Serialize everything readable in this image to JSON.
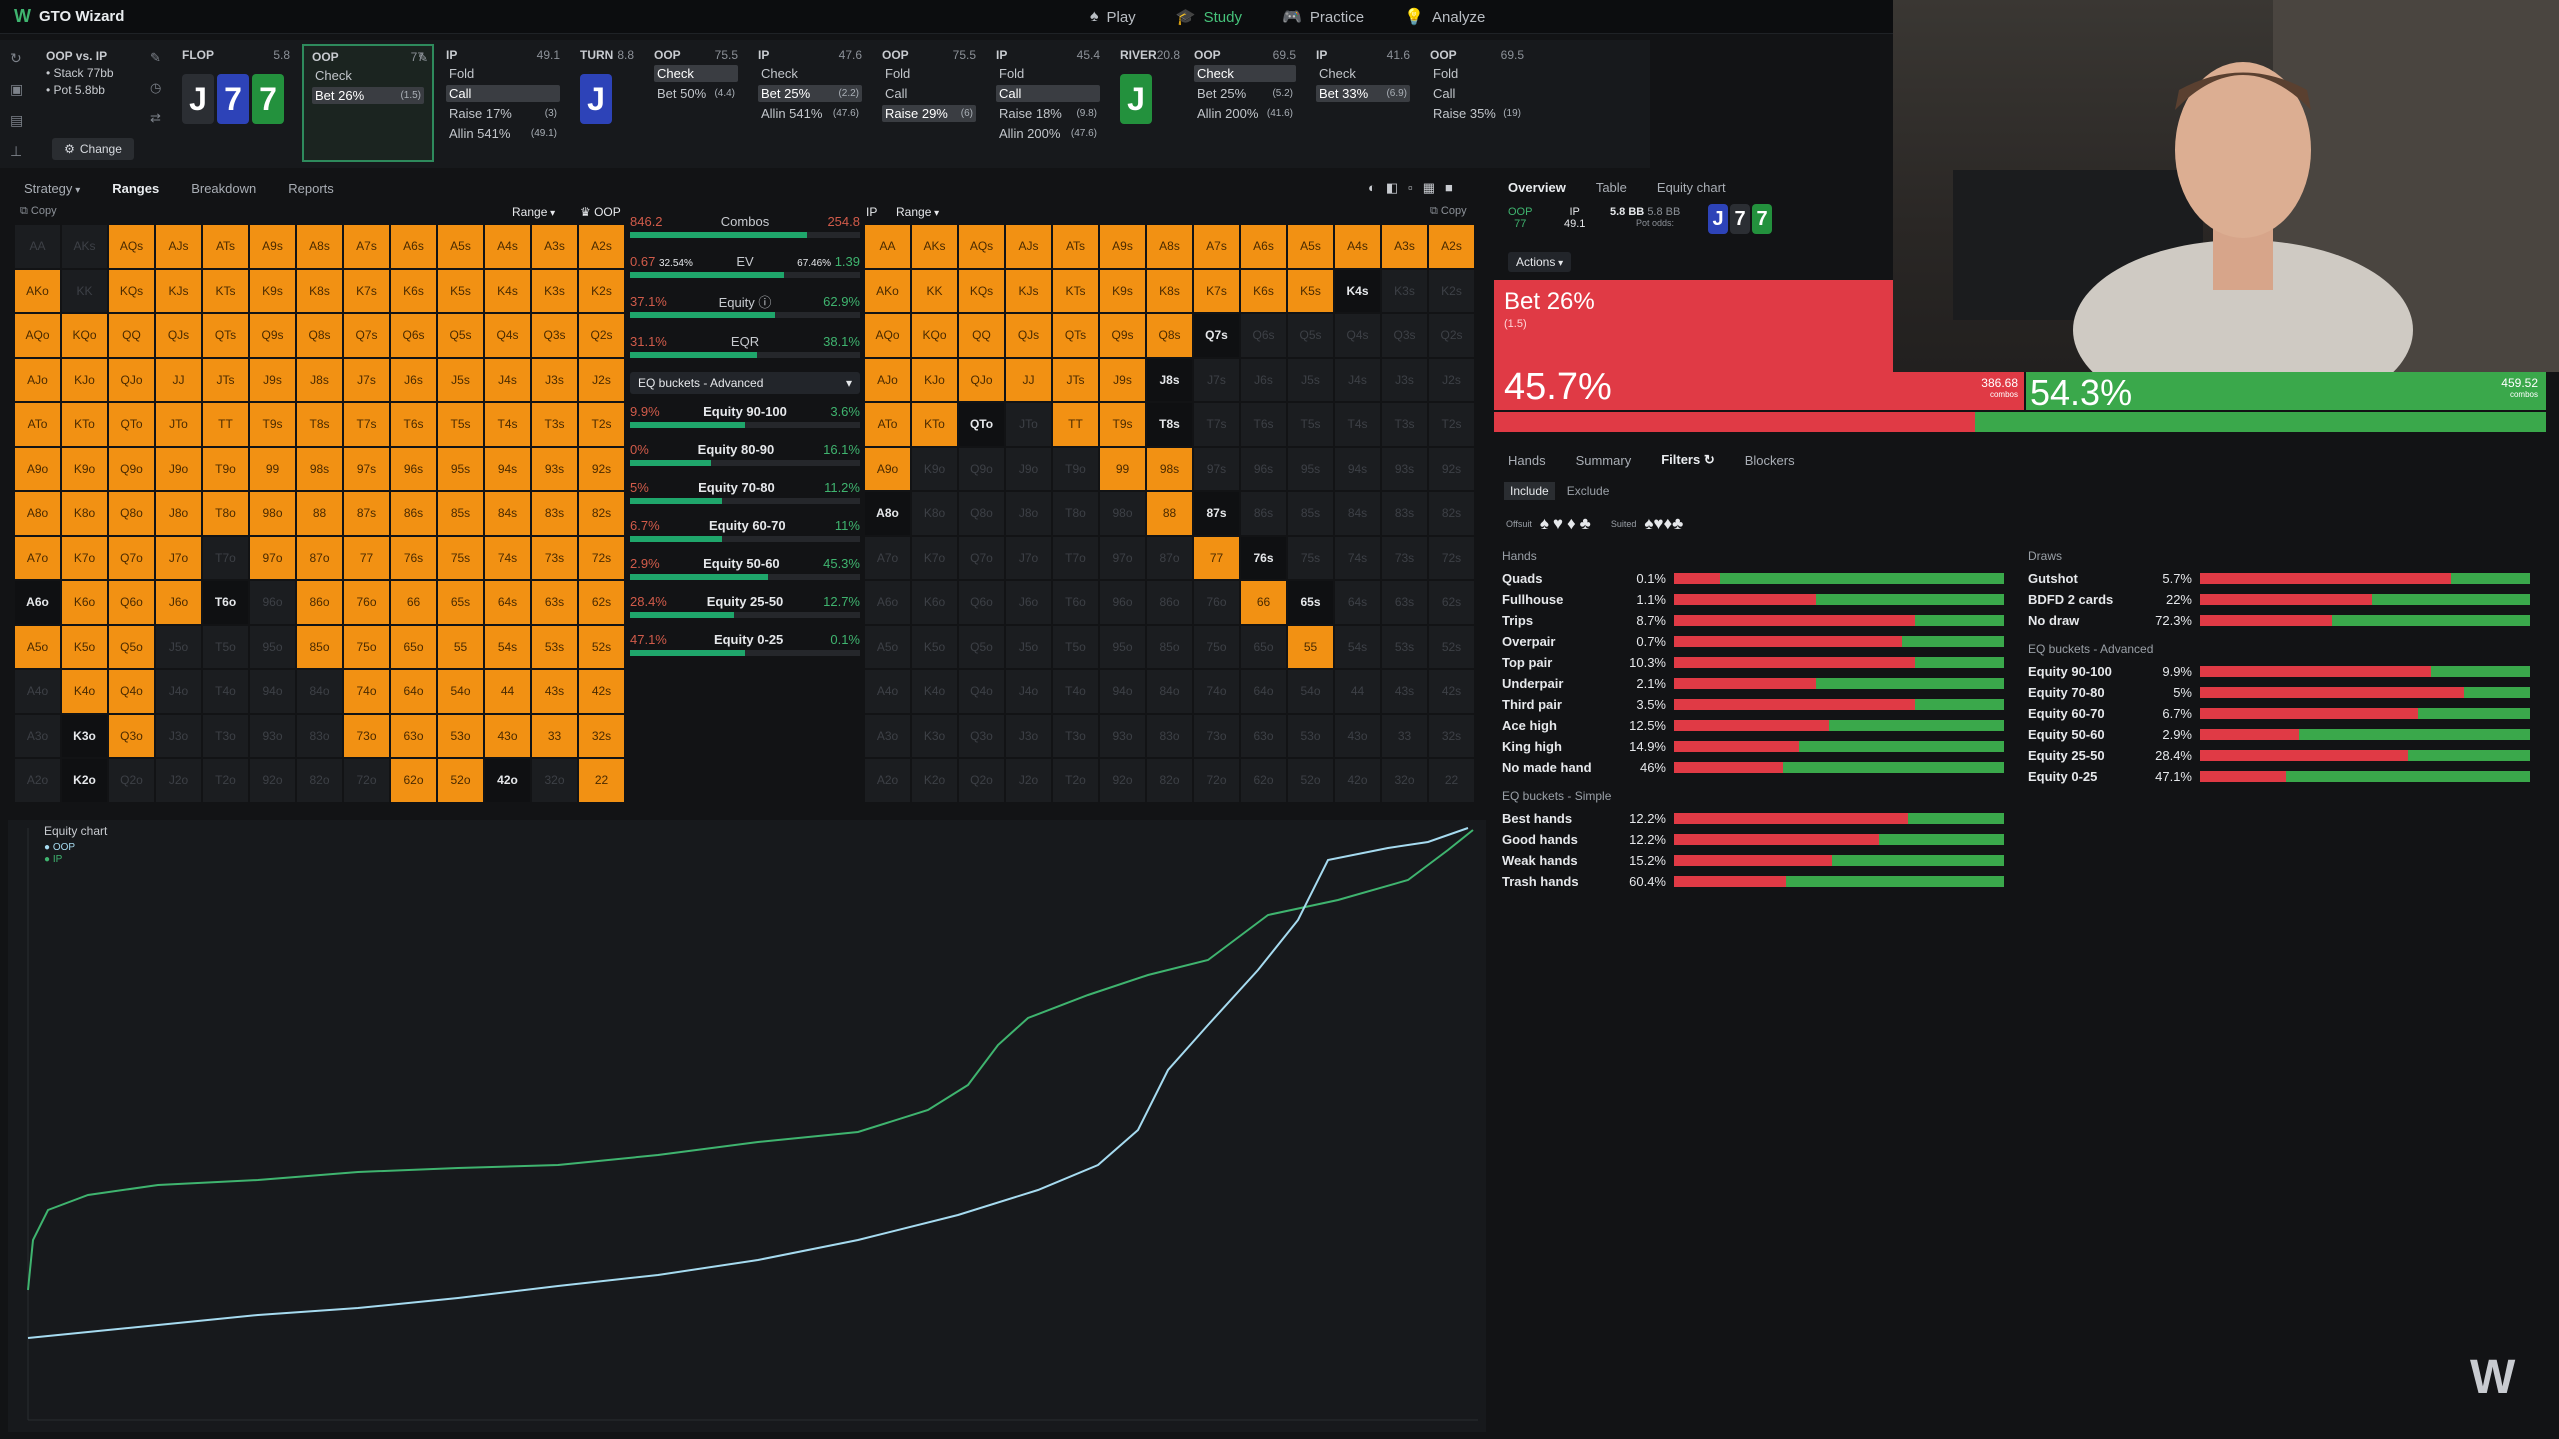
{
  "app": {
    "title": "GTO Wizard"
  },
  "nav": [
    {
      "label": "Play",
      "icon": "play-icon"
    },
    {
      "label": "Study",
      "icon": "study-icon",
      "active": true
    },
    {
      "label": "Practice",
      "icon": "practice-icon"
    },
    {
      "label": "Analyze",
      "icon": "analyze-icon"
    }
  ],
  "context": {
    "matchup": "OOP vs. IP",
    "stack": "Stack 77bb",
    "pot": "Pot 5.8bb",
    "change": "Change"
  },
  "columns": [
    {
      "pos": "FLOP",
      "pot": "5.8",
      "cards": [
        "J",
        "7",
        "7"
      ],
      "actions": []
    },
    {
      "pos": "OOP",
      "pot": "77",
      "actions": [
        {
          "l": "Check",
          "c": ""
        },
        {
          "l": "Bet 26%",
          "c": "(1.5)",
          "sel": true
        }
      ]
    },
    {
      "pos": "IP",
      "pot": "49.1",
      "actions": [
        {
          "l": "Fold",
          "c": ""
        },
        {
          "l": "Call",
          "c": "",
          "sel": true
        },
        {
          "l": "Raise 17%",
          "c": "(3)"
        },
        {
          "l": "Allin 541%",
          "c": "(49.1)"
        }
      ]
    },
    {
      "pos": "TURN",
      "pot": "8.8",
      "cards": [
        "J"
      ],
      "actions": []
    },
    {
      "pos": "OOP",
      "pot": "75.5",
      "actions": [
        {
          "l": "Check",
          "c": "",
          "sel": true
        },
        {
          "l": "Bet 50%",
          "c": "(4.4)"
        }
      ]
    },
    {
      "pos": "IP",
      "pot": "47.6",
      "actions": [
        {
          "l": "Check",
          "c": ""
        },
        {
          "l": "Bet 25%",
          "c": "(2.2)",
          "sel": true
        },
        {
          "l": "Allin 541%",
          "c": "(47.6)"
        }
      ]
    },
    {
      "pos": "OOP",
      "pot": "75.5",
      "actions": [
        {
          "l": "Fold",
          "c": ""
        },
        {
          "l": "Call",
          "c": ""
        },
        {
          "l": "Raise 29%",
          "c": "(6)",
          "sel": true
        }
      ]
    },
    {
      "pos": "IP",
      "pot": "45.4",
      "actions": [
        {
          "l": "Fold",
          "c": ""
        },
        {
          "l": "Call",
          "c": "",
          "sel": true
        },
        {
          "l": "Raise 18%",
          "c": "(9.8)"
        },
        {
          "l": "Allin 200%",
          "c": "(47.6)"
        }
      ]
    },
    {
      "pos": "RIVER",
      "pot": "20.8",
      "cards": [
        "J"
      ],
      "actions": []
    },
    {
      "pos": "OOP",
      "pot": "69.5",
      "actions": [
        {
          "l": "Check",
          "c": "",
          "sel": true
        },
        {
          "l": "Bet 25%",
          "c": "(5.2)"
        },
        {
          "l": "Allin 200%",
          "c": "(41.6)"
        }
      ]
    },
    {
      "pos": "IP",
      "pot": "41.6",
      "actions": [
        {
          "l": "Check",
          "c": ""
        },
        {
          "l": "Bet 33%",
          "c": "(6.9)",
          "sel": true
        }
      ]
    },
    {
      "pos": "OOP",
      "pot": "69.5",
      "actions": [
        {
          "l": "Fold",
          "c": ""
        },
        {
          "l": "Call",
          "c": ""
        },
        {
          "l": "Raise 35%",
          "c": "(19)"
        }
      ]
    }
  ],
  "tabs": {
    "strategy": "Strategy",
    "ranges": "Ranges",
    "breakdown": "Breakdown",
    "reports": "Reports"
  },
  "left_grid": {
    "copy": "Copy",
    "range": "Range",
    "player": "OOP"
  },
  "right_grid": {
    "copy": "Copy",
    "range": "Range",
    "player": "IP"
  },
  "stats": {
    "combos": {
      "l": "846.2",
      "m": "Combos",
      "r": "254.8"
    },
    "ev": {
      "l": "0.67",
      "l2": "32.54%",
      "m": "EV",
      "r2": "67.46%",
      "r": "1.39"
    },
    "equity": {
      "l": "37.1%",
      "m": "Equity",
      "r": "62.9%"
    },
    "eqr": {
      "l": "31.1%",
      "m": "EQR",
      "r": "38.1%"
    },
    "eq_select": "EQ buckets - Advanced",
    "buckets": [
      {
        "l": "9.9%",
        "m": "Equity 90-100",
        "r": "3.6%"
      },
      {
        "l": "0%",
        "m": "Equity 80-90",
        "r": "16.1%"
      },
      {
        "l": "5%",
        "m": "Equity 70-80",
        "r": "11.2%"
      },
      {
        "l": "6.7%",
        "m": "Equity 60-70",
        "r": "11%"
      },
      {
        "l": "2.9%",
        "m": "Equity 50-60",
        "r": "45.3%"
      },
      {
        "l": "28.4%",
        "m": "Equity 25-50",
        "r": "12.7%"
      },
      {
        "l": "47.1%",
        "m": "Equity 0-25",
        "r": "0.1%"
      }
    ]
  },
  "right_panel": {
    "tabs": [
      "Overview",
      "Table",
      "Equity chart"
    ],
    "node": {
      "oop": "OOP",
      "oop_val": "77",
      "ip": "IP",
      "ip_val": "49.1",
      "pot": "5.8 BB",
      "pot2": "5.8 BB",
      "potodds": "Pot odds:",
      "cards": [
        "J",
        "7",
        "7"
      ]
    },
    "actions_label": "Actions",
    "bet": {
      "label": "Bet 26%",
      "size": "(1.5)",
      "pct": "45.7%",
      "combos": "386.68",
      "combos_lbl": "combos"
    },
    "check": {
      "pct": "54.3%",
      "combos": "459.52",
      "combos_lbl": "combos"
    },
    "subtabs": [
      "Hands",
      "Summary",
      "Filters",
      "Blockers"
    ],
    "include": "Include",
    "exclude": "Exclude",
    "offsuit": "Offsuit",
    "suited": "Suited",
    "hands_title": "Hands",
    "hands": [
      {
        "n": "Quads",
        "p": "0.1%",
        "bet": 0.14
      },
      {
        "n": "Fullhouse",
        "p": "1.1%",
        "bet": 0.43
      },
      {
        "n": "Trips",
        "p": "8.7%",
        "bet": 0.73
      },
      {
        "n": "Overpair",
        "p": "0.7%",
        "bet": 0.69
      },
      {
        "n": "Top pair",
        "p": "10.3%",
        "bet": 0.73
      },
      {
        "n": "Underpair",
        "p": "2.1%",
        "bet": 0.43
      },
      {
        "n": "Third pair",
        "p": "3.5%",
        "bet": 0.73
      },
      {
        "n": "Ace high",
        "p": "12.5%",
        "bet": 0.47
      },
      {
        "n": "King high",
        "p": "14.9%",
        "bet": 0.38
      },
      {
        "n": "No made hand",
        "p": "46%",
        "bet": 0.33
      }
    ],
    "eqs_title": "EQ buckets - Simple",
    "eq_simple": [
      {
        "n": "Best hands",
        "p": "12.2%",
        "bet": 0.71
      },
      {
        "n": "Good hands",
        "p": "12.2%",
        "bet": 0.62
      },
      {
        "n": "Weak hands",
        "p": "15.2%",
        "bet": 0.48
      },
      {
        "n": "Trash hands",
        "p": "60.4%",
        "bet": 0.34
      }
    ],
    "draws_title": "Draws",
    "draws": [
      {
        "n": "Gutshot",
        "p": "5.7%",
        "bet": 0.76
      },
      {
        "n": "BDFD 2 cards",
        "p": "22%",
        "bet": 0.52
      },
      {
        "n": "No draw",
        "p": "72.3%",
        "bet": 0.4
      }
    ],
    "eqa_title": "EQ buckets - Advanced",
    "eq_adv": [
      {
        "n": "Equity 90-100",
        "p": "9.9%",
        "bet": 0.7
      },
      {
        "n": "Equity 70-80",
        "p": "5%",
        "bet": 0.8
      },
      {
        "n": "Equity 60-70",
        "p": "6.7%",
        "bet": 0.66
      },
      {
        "n": "Equity 50-60",
        "p": "2.9%",
        "bet": 0.3
      },
      {
        "n": "Equity 25-50",
        "p": "28.4%",
        "bet": 0.63
      },
      {
        "n": "Equity 0-25",
        "p": "47.1%",
        "bet": 0.26
      }
    ]
  },
  "equity_chart": {
    "title": "Equity chart",
    "series": [
      {
        "name": "OOP"
      },
      {
        "name": "IP"
      }
    ]
  },
  "colors": {
    "orange": "#f29113",
    "bet": "#e03a45",
    "check": "#3aa84b",
    "accent": "#46c27a",
    "oop_line": "#a6dbf0",
    "ip_line": "#3fb46f"
  }
}
